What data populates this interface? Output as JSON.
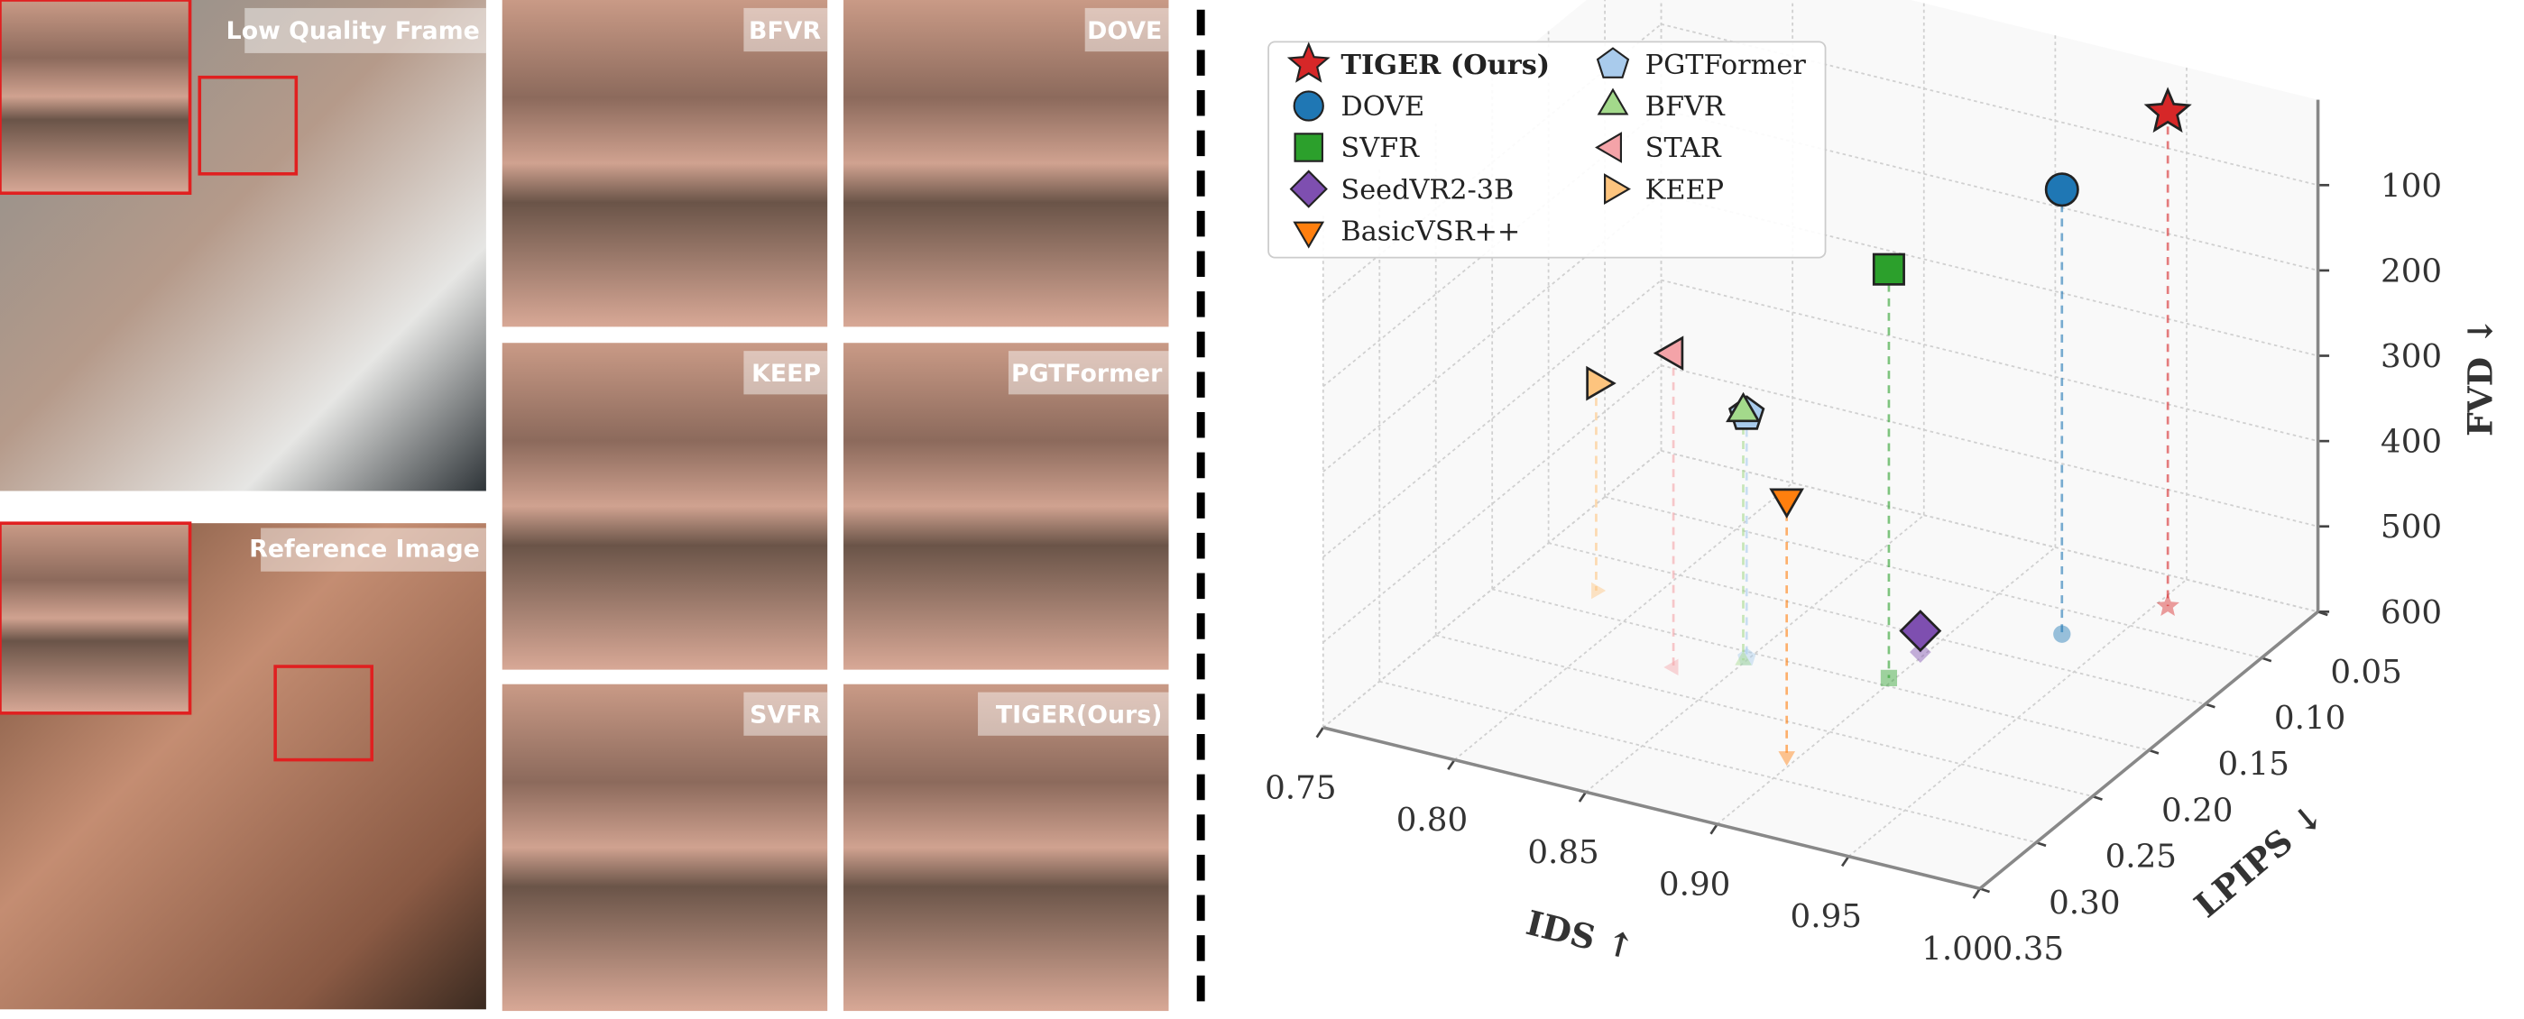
{
  "panels": [
    {
      "label": "Low Quality Frame"
    },
    {
      "label": "Reference Image"
    },
    {
      "label": "BFVR"
    },
    {
      "label": "DOVE"
    },
    {
      "label": "KEEP"
    },
    {
      "label": "PGTFormer"
    },
    {
      "label": "SVFR"
    },
    {
      "label": "TIGER(Ours)"
    }
  ],
  "chart_data": {
    "type": "scatter3d",
    "x_label": "IDS ↑",
    "y_label": "LPIPS ↓",
    "z_label": "FVD ↓",
    "xlim": [
      0.75,
      1.0
    ],
    "ylim": [
      0.05,
      0.35
    ],
    "zlim": [
      0,
      600
    ],
    "z_inverted": true,
    "xticks": [
      0.75,
      {
        "value": 0.8,
        "label": "0.80"
      },
      0.85,
      {
        "value": 0.9,
        "label": "0.90"
      },
      0.95,
      {
        "value": 1.0,
        "label": "1.00"
      }
    ],
    "yticks": [
      0.05,
      {
        "value": 0.1,
        "label": "0.10"
      },
      0.15,
      {
        "value": 0.2,
        "label": "0.20"
      },
      0.25,
      {
        "value": 0.3,
        "label": "0.30"
      },
      0.35
    ],
    "zticks": [
      100,
      200,
      300,
      400,
      500,
      600
    ],
    "grid": true,
    "legend": "upper left",
    "series": [
      {
        "name": "TIGER (Ours)",
        "color": "#d62728",
        "marker": "star",
        "x": [
          0.954
        ],
        "y": [
          0.076
        ],
        "z": [
          21
        ]
      },
      {
        "name": "DOVE",
        "color": "#1f77b4",
        "marker": "circle",
        "x": [
          0.933
        ],
        "y": [
          0.121
        ],
        "z": [
          79
        ]
      },
      {
        "name": "SVFR",
        "color": "#2ca02c",
        "marker": "square",
        "x": [
          0.898
        ],
        "y": [
          0.193
        ],
        "z": [
          121
        ]
      },
      {
        "name": "SeedVR2-3B",
        "color": "#7e4fb0",
        "marker": "diamond",
        "x": [
          0.898
        ],
        "y": [
          0.165
        ],
        "z": [
          575
        ]
      },
      {
        "name": "BasicVSR++",
        "color": "#ff7f0e",
        "marker": "triangle-down",
        "x": [
          0.896
        ],
        "y": [
          0.279
        ],
        "z": [
          298
        ]
      },
      {
        "name": "PGTFormer",
        "color": "#a9cbec",
        "marker": "pentagon",
        "x": [
          0.849
        ],
        "y": [
          0.205
        ],
        "z": [
          315
        ]
      },
      {
        "name": "BFVR",
        "color": "#a3d98b",
        "marker": "triangle-up",
        "x": [
          0.849
        ],
        "y": [
          0.208
        ],
        "z": [
          309
        ]
      },
      {
        "name": "STAR",
        "color": "#f4a3a8",
        "marker": "triangle-left",
        "x": [
          0.831
        ],
        "y": [
          0.228
        ],
        "z": [
          232
        ]
      },
      {
        "name": "KEEP",
        "color": "#fdc47e",
        "marker": "triangle-right",
        "x": [
          0.781
        ],
        "y": [
          0.18
        ],
        "z": [
          357
        ]
      }
    ]
  }
}
